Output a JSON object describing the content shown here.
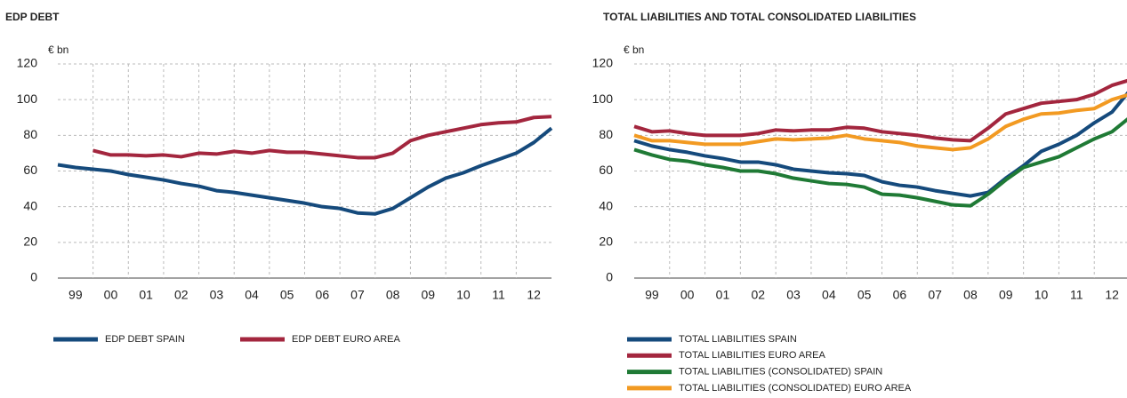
{
  "chart_data": [
    {
      "type": "line",
      "title": "EDP DEBT",
      "unit_label": "€ bn",
      "x": [
        1999,
        1999.5,
        2000,
        2000.5,
        2001,
        2001.5,
        2002,
        2002.5,
        2003,
        2003.5,
        2004,
        2004.5,
        2005,
        2005.5,
        2006,
        2006.5,
        2007,
        2007.5,
        2008,
        2008.5,
        2009,
        2009.5,
        2010,
        2010.5,
        2011,
        2011.5,
        2012,
        2012.5,
        2013
      ],
      "xlim": [
        1999,
        2013
      ],
      "xticks": [
        {
          "value": 1999.5,
          "label": "99"
        },
        {
          "value": 2000.5,
          "label": "00"
        },
        {
          "value": 2001.5,
          "label": "01"
        },
        {
          "value": 2002.5,
          "label": "02"
        },
        {
          "value": 2003.5,
          "label": "03"
        },
        {
          "value": 2004.5,
          "label": "04"
        },
        {
          "value": 2005.5,
          "label": "05"
        },
        {
          "value": 2006.5,
          "label": "06"
        },
        {
          "value": 2007.5,
          "label": "07"
        },
        {
          "value": 2008.5,
          "label": "08"
        },
        {
          "value": 2009.5,
          "label": "09"
        },
        {
          "value": 2010.5,
          "label": "10"
        },
        {
          "value": 2011.5,
          "label": "11"
        },
        {
          "value": 2012.5,
          "label": "12"
        }
      ],
      "ylim": [
        0,
        120
      ],
      "yticks": [
        0,
        20,
        40,
        60,
        80,
        100,
        120
      ],
      "grid": true,
      "series": [
        {
          "name": "EDP DEBT SPAIN",
          "color": "#154a7c",
          "values": [
            63.5,
            62,
            61,
            60,
            58,
            56.5,
            55,
            53,
            51.5,
            49,
            48,
            46.5,
            45,
            43.5,
            42,
            40,
            39,
            36.5,
            36,
            39,
            45,
            51,
            56,
            59,
            63,
            66.5,
            70,
            76,
            84
          ]
        },
        {
          "name": "EDP DEBT EURO AREA",
          "color": "#a3263e",
          "values": [
            null,
            null,
            71.5,
            69,
            69,
            68.5,
            69,
            68,
            70,
            69.5,
            71,
            70,
            71.5,
            70.5,
            70.5,
            69.5,
            68.5,
            67.5,
            67.5,
            70,
            77,
            80,
            82,
            84,
            86,
            87,
            87.5,
            90,
            90.5
          ]
        }
      ]
    },
    {
      "type": "line",
      "title": "TOTAL LIABILITIES AND TOTAL CONSOLIDATED LIABILITIES",
      "unit_label": "€ bn",
      "x": [
        1999,
        1999.5,
        2000,
        2000.5,
        2001,
        2001.5,
        2002,
        2002.5,
        2003,
        2003.5,
        2004,
        2004.5,
        2005,
        2005.5,
        2006,
        2006.5,
        2007,
        2007.5,
        2008,
        2008.5,
        2009,
        2009.5,
        2010,
        2010.5,
        2011,
        2011.5,
        2012,
        2012.5,
        2013
      ],
      "xlim": [
        1999,
        2013
      ],
      "xticks": [
        {
          "value": 1999.5,
          "label": "99"
        },
        {
          "value": 2000.5,
          "label": "00"
        },
        {
          "value": 2001.5,
          "label": "01"
        },
        {
          "value": 2002.5,
          "label": "02"
        },
        {
          "value": 2003.5,
          "label": "03"
        },
        {
          "value": 2004.5,
          "label": "04"
        },
        {
          "value": 2005.5,
          "label": "05"
        },
        {
          "value": 2006.5,
          "label": "06"
        },
        {
          "value": 2007.5,
          "label": "07"
        },
        {
          "value": 2008.5,
          "label": "08"
        },
        {
          "value": 2009.5,
          "label": "09"
        },
        {
          "value": 2010.5,
          "label": "10"
        },
        {
          "value": 2011.5,
          "label": "11"
        },
        {
          "value": 2012.5,
          "label": "12"
        }
      ],
      "ylim": [
        0,
        120
      ],
      "yticks": [
        0,
        20,
        40,
        60,
        80,
        100,
        120
      ],
      "grid": true,
      "series": [
        {
          "name": "TOTAL LIABILITIES SPAIN",
          "color": "#154a7c",
          "values": [
            77,
            74,
            72,
            70.5,
            68.5,
            67,
            65,
            65,
            63.5,
            61,
            60,
            59,
            58.5,
            57.5,
            54,
            52,
            51,
            49,
            47.5,
            46,
            48,
            56,
            63,
            71,
            75,
            80,
            87,
            93,
            105
          ]
        },
        {
          "name": "TOTAL LIABILITIES EURO AREA",
          "color": "#a3263e",
          "values": [
            85,
            82,
            82.5,
            81,
            80,
            80,
            80,
            81,
            83,
            82.5,
            83,
            83,
            84.5,
            84,
            82,
            81,
            80,
            78.5,
            77.5,
            77,
            84,
            92,
            95,
            98,
            99,
            100,
            103,
            108,
            111
          ]
        },
        {
          "name": "TOTAL LIABILITIES (CONSOLIDATED) SPAIN",
          "color": "#1f7a35",
          "values": [
            72,
            69,
            66.5,
            65.5,
            63.5,
            62,
            60,
            60,
            58.5,
            56,
            54.5,
            53,
            52.5,
            51,
            47,
            46.5,
            45,
            43,
            41,
            40.5,
            47,
            55,
            62,
            65,
            68,
            73,
            78,
            82,
            90
          ]
        },
        {
          "name": "TOTAL LIABILITIES (CONSOLIDATED) EURO AREA",
          "color": "#f29a22",
          "values": [
            80,
            77,
            77,
            76,
            75,
            75,
            75,
            76.5,
            78,
            77.5,
            78,
            78.5,
            80,
            78,
            77,
            76,
            74,
            73,
            72,
            73,
            78,
            85,
            89,
            92,
            92.5,
            94,
            95,
            100,
            103
          ]
        }
      ]
    }
  ]
}
